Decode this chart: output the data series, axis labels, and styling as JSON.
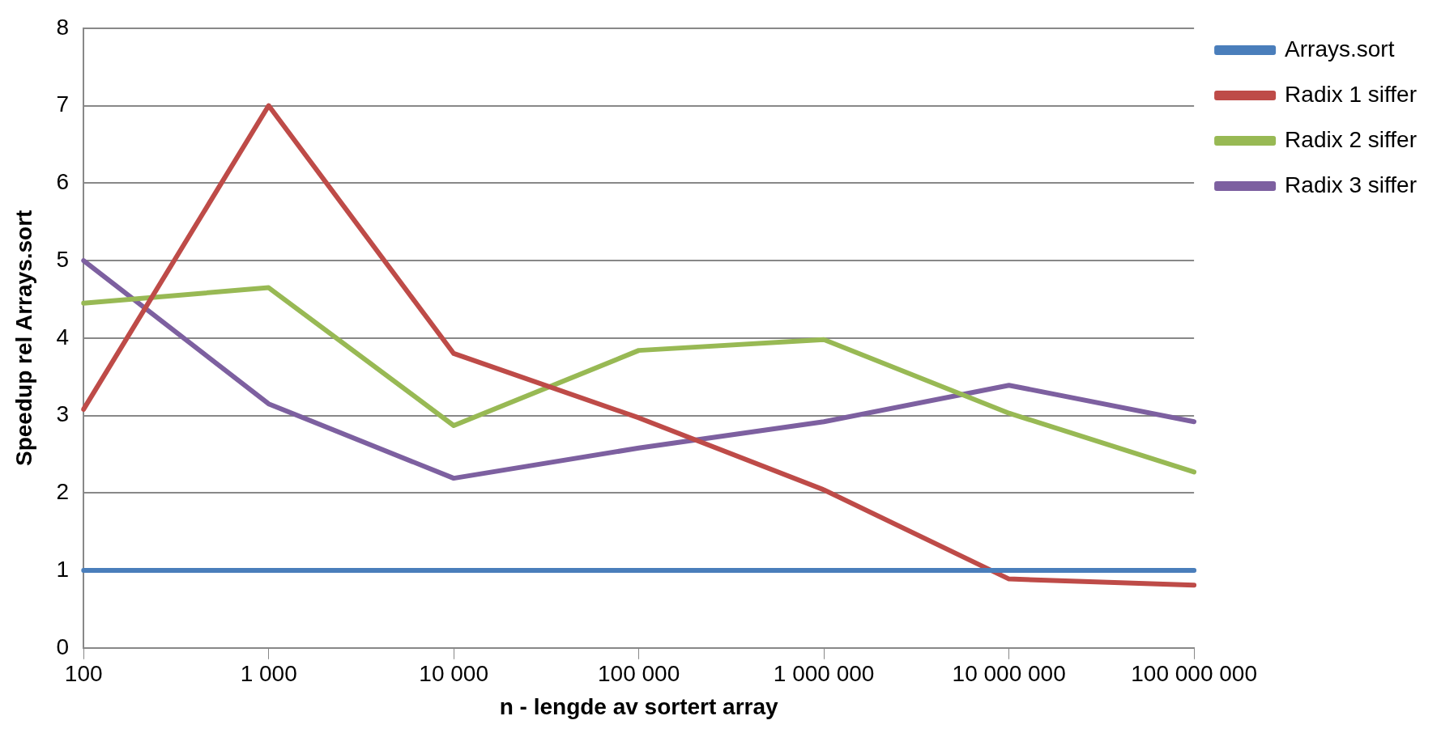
{
  "chart_data": {
    "type": "line",
    "xlabel": "n - lengde av sortert array",
    "ylabel": "Speedup rel Arrays.sort",
    "categories": [
      "100",
      "1 000",
      "10 000",
      "100 000",
      "1 000 000",
      "10 000 000",
      "100 000 000"
    ],
    "series": [
      {
        "name": "Arrays.sort",
        "color": "#4a7ebb",
        "values": [
          1,
          1,
          1,
          1,
          1,
          1,
          1
        ]
      },
      {
        "name": "Radix 1 siffer",
        "color": "#be4b48",
        "values": [
          3.08,
          7.0,
          3.8,
          2.97,
          2.04,
          0.89,
          0.81
        ]
      },
      {
        "name": "Radix 2 siffer",
        "color": "#98b954",
        "values": [
          4.45,
          4.65,
          2.87,
          3.84,
          3.98,
          3.03,
          2.27
        ]
      },
      {
        "name": "Radix 3 siffer",
        "color": "#7d60a0",
        "values": [
          5.0,
          3.15,
          2.19,
          2.58,
          2.92,
          3.39,
          2.92
        ]
      }
    ],
    "ylim": [
      0,
      8
    ],
    "yticks": [
      0,
      1,
      2,
      3,
      4,
      5,
      6,
      7,
      8
    ],
    "grid": "y",
    "legend": "right",
    "marker": "none",
    "line_style": "solid"
  }
}
